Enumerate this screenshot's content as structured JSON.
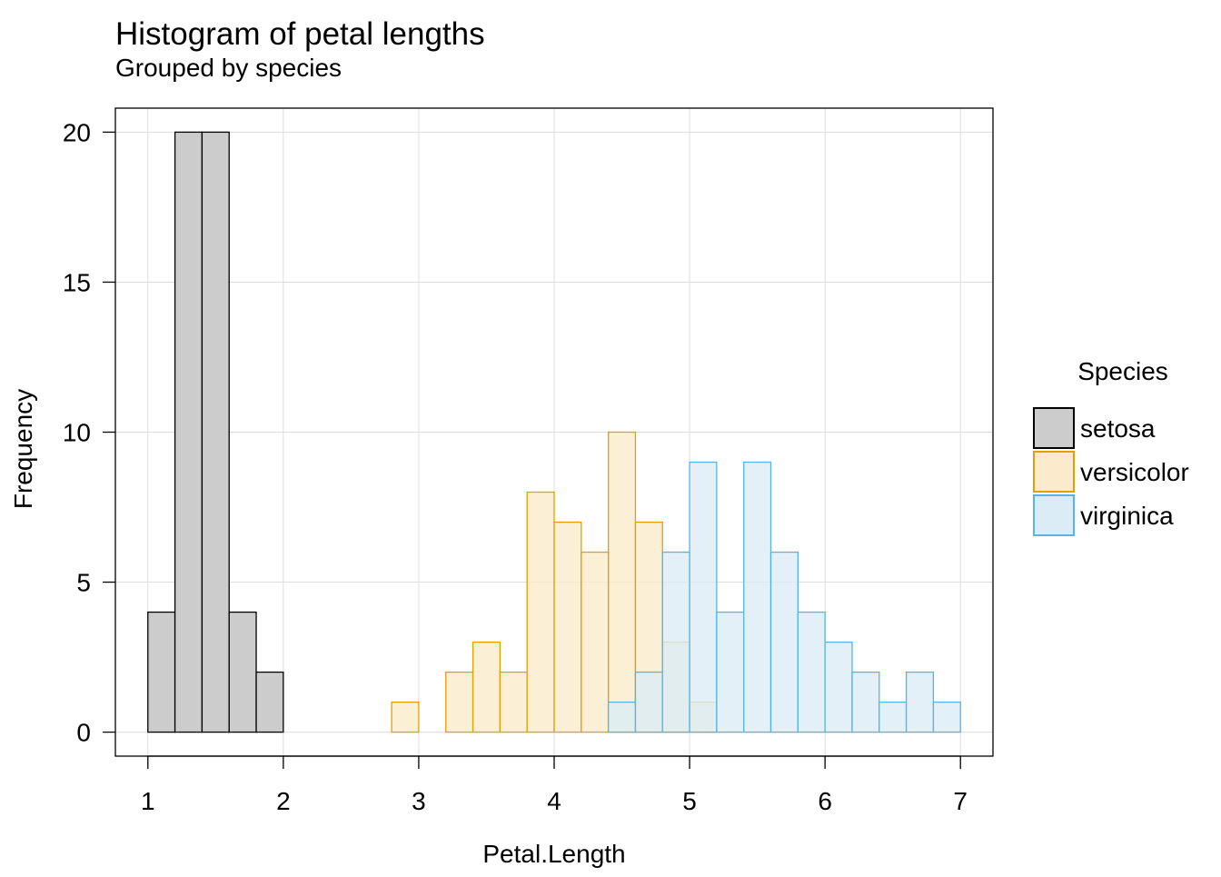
{
  "chart_data": {
    "type": "bar",
    "title": "Histogram of petal lengths",
    "subtitle": "Grouped by species",
    "xlabel": "Petal.Length",
    "ylabel": "Frequency",
    "xlim": [
      0.76,
      7.24
    ],
    "ylim": [
      -0.8,
      20.8
    ],
    "xticks": [
      1,
      2,
      3,
      4,
      5,
      6,
      7
    ],
    "yticks": [
      0,
      5,
      10,
      15,
      20
    ],
    "bin_width": 0.2,
    "grid": true,
    "legend": {
      "title": "Species",
      "position": "right"
    },
    "series": [
      {
        "name": "setosa",
        "fill": "#cccccc",
        "stroke": "#000000",
        "bins": [
          [
            1.0,
            4
          ],
          [
            1.2,
            20
          ],
          [
            1.4,
            20
          ],
          [
            1.6,
            4
          ],
          [
            1.8,
            2
          ]
        ]
      },
      {
        "name": "versicolor",
        "fill": "#faebcc",
        "stroke": "#e69f00",
        "bins": [
          [
            2.8,
            1
          ],
          [
            3.2,
            2
          ],
          [
            3.4,
            3
          ],
          [
            3.6,
            2
          ],
          [
            3.8,
            8
          ],
          [
            4.0,
            7
          ],
          [
            4.2,
            6
          ],
          [
            4.4,
            10
          ],
          [
            4.6,
            7
          ],
          [
            4.8,
            3
          ],
          [
            5.0,
            1
          ]
        ]
      },
      {
        "name": "virginica",
        "fill": "#dcecf6",
        "stroke": "#56b4e9",
        "bins": [
          [
            4.4,
            1
          ],
          [
            4.6,
            2
          ],
          [
            4.8,
            6
          ],
          [
            5.0,
            9
          ],
          [
            5.2,
            4
          ],
          [
            5.4,
            9
          ],
          [
            5.6,
            6
          ],
          [
            5.8,
            4
          ],
          [
            6.0,
            3
          ],
          [
            6.2,
            2
          ],
          [
            6.4,
            1
          ],
          [
            6.6,
            2
          ],
          [
            6.8,
            1
          ]
        ]
      }
    ]
  }
}
